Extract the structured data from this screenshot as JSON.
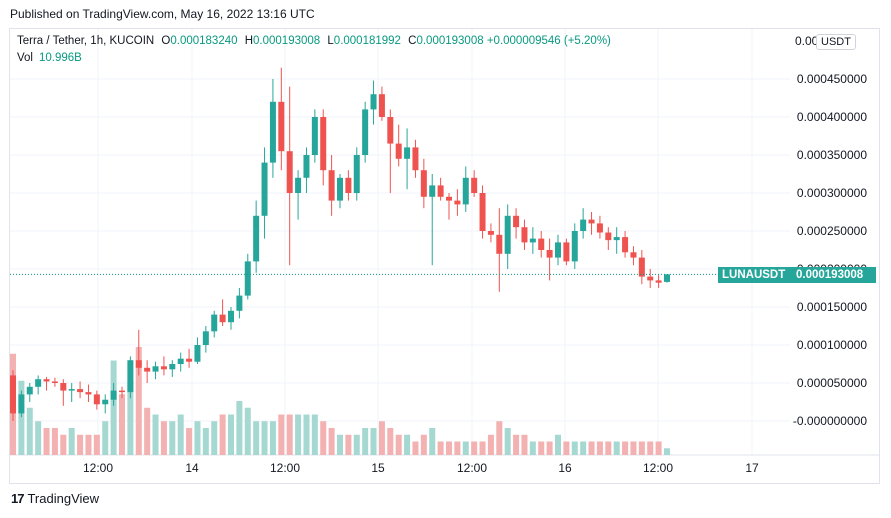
{
  "header": {
    "published": "Published on TradingView.com, May 16, 2022 13:16 UTC"
  },
  "legend": {
    "symbol": "Terra / Tether, 1h, KUCOIN",
    "o_label": "O",
    "o": "0.000183240",
    "h_label": "H",
    "h": "0.000193008",
    "l_label": "L",
    "l": "0.000181992",
    "c_label": "C",
    "c": "0.000193008",
    "change": "+0.000009546 (+5.20%)",
    "vol_label": "Vol",
    "vol": "10.996B"
  },
  "unit_button": "USDT",
  "price_tag": {
    "symbol": "LUNAUSDT",
    "price": "0.000193008"
  },
  "footer": {
    "brand": "TradingView"
  },
  "colors": {
    "up": "#26a69a",
    "down": "#ef5350",
    "up_vol": "#a6d8d2",
    "down_vol": "#f3b1b1",
    "grid": "#f0f3fa",
    "line": "#089981"
  },
  "chart_data": {
    "type": "candlestick",
    "title": "Terra / Tether, 1h, KUCOIN",
    "ylim": [
      -5e-07,
      0.0005
    ],
    "last_price": 0.000193008,
    "yticks": [
      "0.000450000",
      "0.000400000",
      "0.000350000",
      "0.000300000",
      "0.000250000",
      "0.000200000",
      "0.000150000",
      "0.000100000",
      "0.000050000",
      "-0.000000000"
    ],
    "ytick_values": [
      0.00045,
      0.0004,
      0.00035,
      0.0003,
      0.00025,
      0.0002,
      0.00015,
      0.0001,
      5e-05,
      0
    ],
    "xticks": [
      "12:00",
      "14",
      "12:00",
      "15",
      "12:00",
      "16",
      "12:00",
      "17"
    ],
    "candles": [
      [
        6e-05,
        6.7e-05,
        0.0,
        1e-05
      ],
      [
        1e-05,
        4e-05,
        5e-06,
        3.5e-05
      ],
      [
        3.5e-05,
        5e-05,
        2.5e-05,
        4.5e-05
      ],
      [
        4.5e-05,
        6e-05,
        3.5e-05,
        5.5e-05
      ],
      [
        5.5e-05,
        5.8e-05,
        4e-05,
        5.2e-05
      ],
      [
        5.2e-05,
        5.7e-05,
        4.5e-05,
        5e-05
      ],
      [
        5e-05,
        5.5e-05,
        2e-05,
        4e-05
      ],
      [
        4e-05,
        5e-05,
        2.5e-05,
        4.2e-05
      ],
      [
        4.2e-05,
        5.2e-05,
        3e-05,
        3.8e-05
      ],
      [
        3.8e-05,
        4.8e-05,
        2.5e-05,
        3.5e-05
      ],
      [
        3.5e-05,
        4e-05,
        1.5e-05,
        2.2e-05
      ],
      [
        2.2e-05,
        3.5e-05,
        1e-05,
        2.8e-05
      ],
      [
        2.8e-05,
        5e-05,
        2e-05,
        4e-05
      ],
      [
        4e-05,
        4.5e-05,
        3e-05,
        3.8e-05
      ],
      [
        3.8e-05,
        8.5e-05,
        3e-05,
        8e-05
      ],
      [
        8e-05,
        0.00012,
        6e-05,
        7e-05
      ],
      [
        7e-05,
        8e-05,
        5e-05,
        6.5e-05
      ],
      [
        6.5e-05,
        7.8e-05,
        5.5e-05,
        7.2e-05
      ],
      [
        7.2e-05,
        8.5e-05,
        6e-05,
        6.8e-05
      ],
      [
        6.8e-05,
        8e-05,
        5.8e-05,
        7.5e-05
      ],
      [
        7.5e-05,
        9e-05,
        6.5e-05,
        8.2e-05
      ],
      [
        8.2e-05,
        9.5e-05,
        7e-05,
        7.8e-05
      ],
      [
        7.8e-05,
        0.00011,
        7.5e-05,
        0.0001
      ],
      [
        0.0001,
        0.000125,
        9e-05,
        0.000118
      ],
      [
        0.000118,
        0.000145,
        0.00011,
        0.00014
      ],
      [
        0.00014,
        0.00016,
        0.000125,
        0.00013
      ],
      [
        0.00013,
        0.00015,
        0.00012,
        0.000145
      ],
      [
        0.000145,
        0.000175,
        0.000135,
        0.000165
      ],
      [
        0.000165,
        0.00022,
        0.00016,
        0.00021
      ],
      [
        0.00021,
        0.00029,
        0.000195,
        0.00027
      ],
      [
        0.00027,
        0.00036,
        0.00024,
        0.00034
      ],
      [
        0.00034,
        0.00045,
        0.00032,
        0.00042
      ],
      [
        0.00042,
        0.000465,
        0.00033,
        0.000355
      ],
      [
        0.000355,
        0.00044,
        0.000205,
        0.0003
      ],
      [
        0.0003,
        0.00033,
        0.000265,
        0.00032
      ],
      [
        0.00032,
        0.00036,
        0.0003,
        0.00035
      ],
      [
        0.00035,
        0.00041,
        0.00034,
        0.0004
      ],
      [
        0.0004,
        0.00041,
        0.00031,
        0.00033
      ],
      [
        0.00033,
        0.00035,
        0.00027,
        0.00029
      ],
      [
        0.00029,
        0.000325,
        0.00028,
        0.00032
      ],
      [
        0.00032,
        0.00033,
        0.00029,
        0.0003
      ],
      [
        0.0003,
        0.00036,
        0.00029,
        0.00035
      ],
      [
        0.00035,
        0.00042,
        0.00034,
        0.00041
      ],
      [
        0.00041,
        0.000448,
        0.00039,
        0.00043
      ],
      [
        0.00043,
        0.00044,
        0.000395,
        0.0004
      ],
      [
        0.0004,
        0.00041,
        0.0003,
        0.000365
      ],
      [
        0.000365,
        0.00039,
        0.000335,
        0.000345
      ],
      [
        0.000345,
        0.000385,
        0.000305,
        0.00036
      ],
      [
        0.00036,
        0.00037,
        0.00032,
        0.00033
      ],
      [
        0.00033,
        0.000345,
        0.00028,
        0.000295
      ],
      [
        0.000295,
        0.000325,
        0.000205,
        0.00031
      ],
      [
        0.00031,
        0.00032,
        0.00029,
        0.000295
      ],
      [
        0.000295,
        0.0003,
        0.000265,
        0.00029
      ],
      [
        0.00029,
        0.000305,
        0.00027,
        0.000285
      ],
      [
        0.000285,
        0.000335,
        0.000275,
        0.00032
      ],
      [
        0.00032,
        0.00033,
        0.000295,
        0.0003
      ],
      [
        0.0003,
        0.00031,
        0.00024,
        0.00025
      ],
      [
        0.00025,
        0.00026,
        0.000235,
        0.000245
      ],
      [
        0.000245,
        0.00028,
        0.00017,
        0.00022
      ],
      [
        0.00022,
        0.000285,
        0.0002,
        0.00027
      ],
      [
        0.00027,
        0.00028,
        0.00024,
        0.000255
      ],
      [
        0.000255,
        0.000265,
        0.000225,
        0.000235
      ],
      [
        0.000235,
        0.000255,
        0.00022,
        0.00024
      ],
      [
        0.00024,
        0.00025,
        0.000215,
        0.000225
      ],
      [
        0.000225,
        0.00024,
        0.000185,
        0.000215
      ],
      [
        0.000215,
        0.000245,
        0.000205,
        0.000235
      ],
      [
        0.000235,
        0.00024,
        0.000205,
        0.00021
      ],
      [
        0.00021,
        0.00026,
        0.0002,
        0.00025
      ],
      [
        0.00025,
        0.00028,
        0.00024,
        0.000265
      ],
      [
        0.000265,
        0.000275,
        0.000245,
        0.00026
      ],
      [
        0.00026,
        0.00027,
        0.00024,
        0.000248
      ],
      [
        0.000248,
        0.000255,
        0.000225,
        0.000238
      ],
      [
        0.000238,
        0.000255,
        0.00022,
        0.000242
      ],
      [
        0.000242,
        0.00025,
        0.000215,
        0.000222
      ],
      [
        0.000222,
        0.00023,
        0.000205,
        0.000215
      ],
      [
        0.000215,
        0.000225,
        0.00018,
        0.00019
      ],
      [
        0.00019,
        0.0002,
        0.000175,
        0.000185
      ],
      [
        0.000185,
        0.000192,
        0.000175,
        0.000182
      ],
      [
        0.000183,
        0.000193,
        0.000182,
        0.000193
      ]
    ],
    "volume": [
      15,
      11,
      7,
      5,
      4,
      4,
      3,
      4,
      3,
      3,
      3,
      5,
      14,
      9,
      11,
      16,
      7,
      6,
      5,
      5,
      6,
      4,
      5,
      4,
      5,
      6,
      6,
      8,
      7,
      5,
      5,
      5,
      6,
      6,
      6,
      6,
      6,
      5,
      4,
      3,
      3,
      3,
      4,
      4,
      5,
      4,
      3,
      3,
      2,
      3,
      4,
      2,
      2,
      2,
      2,
      2,
      2,
      3,
      5,
      4,
      3,
      3,
      2,
      2,
      2,
      3,
      2,
      2,
      2,
      2,
      2,
      2,
      2,
      2,
      2,
      2,
      2,
      2,
      1
    ]
  }
}
